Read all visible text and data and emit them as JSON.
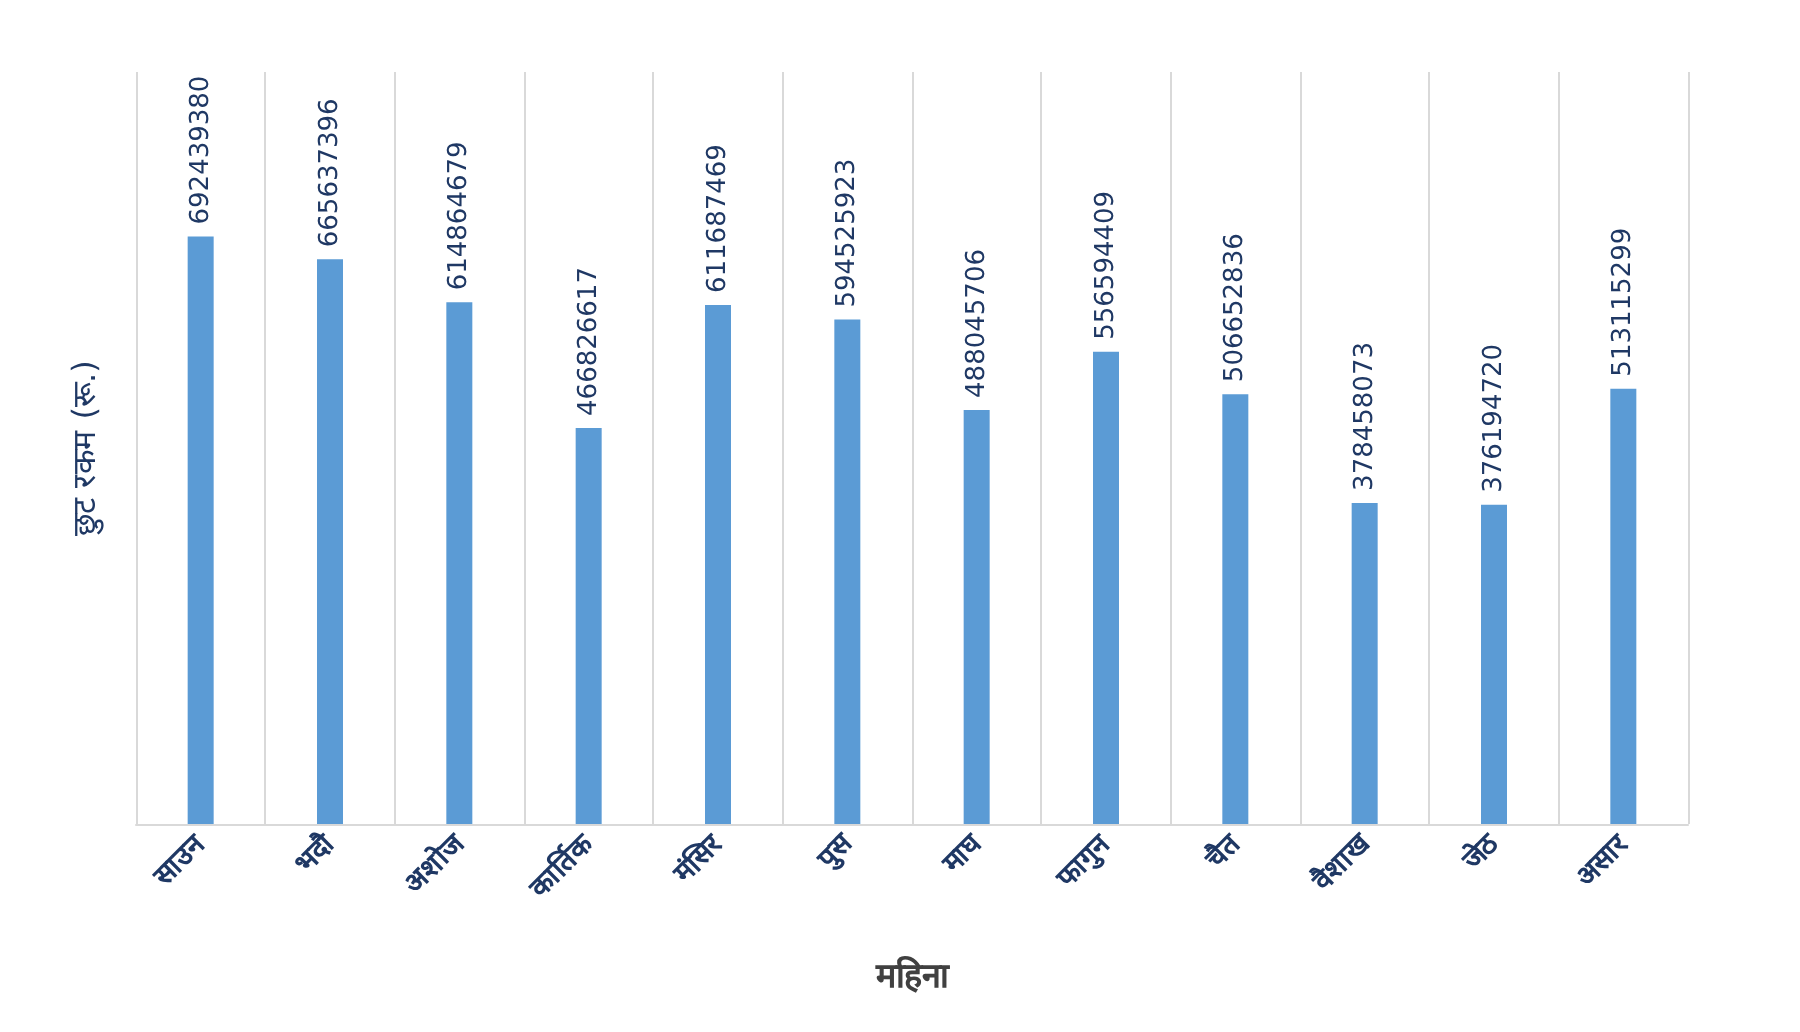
{
  "chart_data": {
    "type": "bar",
    "xlabel": "महिना",
    "ylabel": "छुट रकम (रू.)",
    "categories": [
      "साउन",
      "भदौ",
      "अशोज",
      "कार्तिक",
      "मंसिर",
      "पुस",
      "माघ",
      "फागुन",
      "चैत",
      "वैशाख",
      "जेठ",
      "असार"
    ],
    "values": [
      692439380,
      665637396,
      614864679,
      466826617,
      611687469,
      594525923,
      488045706,
      556594409,
      506652836,
      378458073,
      376194720,
      513115299
    ],
    "color": "#5b9bd5",
    "data_labels": true,
    "grid": "x",
    "tick_labels": "x"
  }
}
